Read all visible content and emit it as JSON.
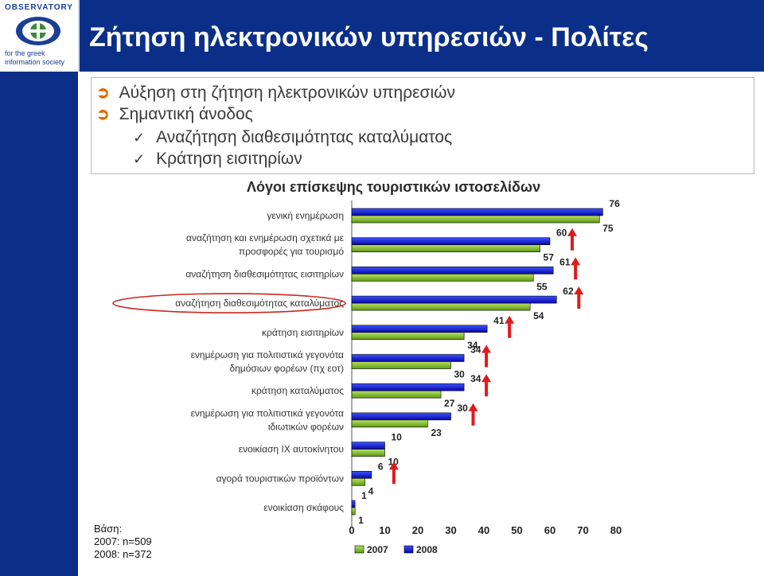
{
  "logo": {
    "top_text": "OBSERVATORY",
    "bottom_line1": "for the greek",
    "bottom_line2": "information society"
  },
  "title": "Ζήτηση ηλεκτρονικών υπηρεσιών - Πολίτες",
  "bullets": [
    {
      "icon": "arrow-bullet-icon",
      "text": "Αύξηση στη ζήτηση ηλεκτρονικών υπηρεσιών"
    },
    {
      "icon": "arrow-bullet-icon",
      "text": "Σημαντική άνοδος"
    },
    {
      "icon": "checkmark-icon",
      "text": "Αναζήτηση διαθεσιμότητας καταλύματος"
    },
    {
      "icon": "checkmark-icon",
      "text": "Κράτηση εισιτηρίων"
    }
  ],
  "base": {
    "label": "Βάση:",
    "line1": "2007: n=509",
    "line2": "2008: n=372"
  },
  "colors": {
    "header": "#0b2f88",
    "series_2007": "#7bbd1e",
    "series_2008": "#0a16c8",
    "up_arrow": "#e01a1a",
    "highlight_oval": "#c8281e",
    "bullet_arrow": "#e06a00"
  },
  "chart_data": {
    "type": "bar",
    "orientation": "horizontal",
    "title": "Λόγοι επίσκεψης τουριστικών ιστοσελίδων",
    "categories": [
      "γενική ενημέρωση",
      "αναζήτηση και ενημέρωση σχετικά με προσφορές για τουρισμό",
      "αναζήτηση διαθεσιμότητας εισιτηρίων",
      "αναζήτηση διαθεσιμότητας καταλύματος",
      "κράτηση εισιτηρίων",
      "ενημέρωση για πολιτιστικά γεγονότα δημόσιων φορέων (πχ εοτ)",
      "κράτηση καταλύματος",
      "ενημέρωση για πολιτιστικά γεγονότα ιδιωτικών φορέων",
      "ενοικίαση ΙΧ αυτοκίνητου",
      "αγορά τουριστικών προϊόντων",
      "ενοικίαση σκάφους"
    ],
    "category_lines": [
      [
        "γενική ενημέρωση"
      ],
      [
        "αναζήτηση και ενημέρωση σχετικά με",
        "προσφορές για τουρισμό"
      ],
      [
        "αναζήτηση διαθεσιμότητας εισιτηρίων"
      ],
      [
        "αναζήτηση διαθεσιμότητας καταλύματος"
      ],
      [
        "κράτηση εισιτηρίων"
      ],
      [
        "ενημέρωση για πολιτιστικά γεγονότα",
        "δημόσιων φορέων (πχ εοτ)"
      ],
      [
        "κράτηση καταλύματος"
      ],
      [
        "ενημέρωση για πολιτιστικά γεγονότα",
        "ιδιωτικών φορέων"
      ],
      [
        "ενοικίαση ΙΧ αυτοκίνητου"
      ],
      [
        "αγορά τουριστικών προϊόντων"
      ],
      [
        "ενοικίαση σκάφους"
      ]
    ],
    "series": [
      {
        "name": "2007",
        "values": [
          75,
          57,
          55,
          54,
          34,
          30,
          27,
          23,
          10,
          4,
          1
        ]
      },
      {
        "name": "2008",
        "values": [
          76,
          60,
          61,
          62,
          41,
          34,
          34,
          30,
          10,
          6,
          1
        ]
      }
    ],
    "increase_arrows": [
      false,
      true,
      true,
      true,
      true,
      true,
      true,
      true,
      false,
      true,
      false
    ],
    "highlighted_category": "αναζήτηση διαθεσιμότητας καταλύματος",
    "xlim": [
      0,
      80
    ],
    "xticks": [
      0,
      10,
      20,
      30,
      40,
      50,
      60,
      70,
      80
    ],
    "legend": [
      "2007",
      "2008"
    ],
    "legend_position": "bottom",
    "grid": false
  }
}
